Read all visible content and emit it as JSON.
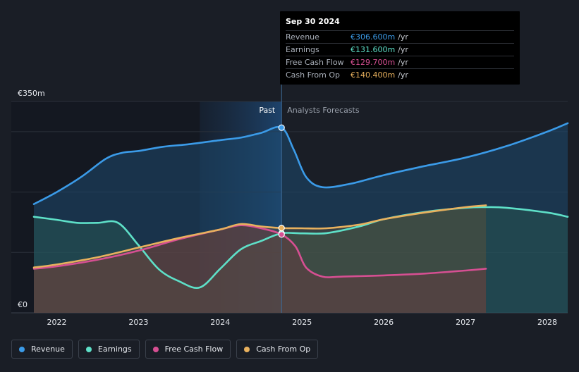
{
  "chart_data": {
    "type": "area",
    "title": "",
    "x_axis": {
      "min": 2021.72,
      "max": 2028.25,
      "ticks": [
        2022,
        2023,
        2024,
        2025,
        2026,
        2027,
        2028
      ],
      "tick_labels": [
        "2022",
        "2023",
        "2024",
        "2025",
        "2026",
        "2027",
        "2028"
      ]
    },
    "y_axis": {
      "min": 0,
      "max": 350,
      "top_label": "€350m",
      "bottom_label": "€0",
      "gridlines": [
        0,
        100,
        200,
        300,
        350
      ]
    },
    "divider_x": 2024.75,
    "highlight_range": [
      2023.75,
      2024.75
    ],
    "regions": {
      "past_label": "Past",
      "forecast_label": "Analysts Forecasts"
    },
    "series": [
      {
        "name": "Revenue",
        "color": "#3b9be8",
        "fill": "#1e4a70",
        "forecast_until": 2028.25,
        "points": [
          [
            2021.72,
            180
          ],
          [
            2022.0,
            200
          ],
          [
            2022.3,
            225
          ],
          [
            2022.6,
            255
          ],
          [
            2022.8,
            265
          ],
          [
            2023.0,
            268
          ],
          [
            2023.3,
            275
          ],
          [
            2023.6,
            279
          ],
          [
            2024.0,
            286
          ],
          [
            2024.25,
            290
          ],
          [
            2024.5,
            298
          ],
          [
            2024.75,
            306.6
          ],
          [
            2024.9,
            270
          ],
          [
            2025.05,
            225
          ],
          [
            2025.25,
            208
          ],
          [
            2025.6,
            214
          ],
          [
            2026.0,
            228
          ],
          [
            2026.5,
            243
          ],
          [
            2027.0,
            257
          ],
          [
            2027.5,
            276
          ],
          [
            2028.0,
            300
          ],
          [
            2028.25,
            314
          ]
        ]
      },
      {
        "name": "Earnings",
        "color": "#5ee0c8",
        "fill": "#2a5a52",
        "forecast_until": 2028.25,
        "points": [
          [
            2021.72,
            159
          ],
          [
            2022.0,
            154
          ],
          [
            2022.25,
            149
          ],
          [
            2022.5,
            149
          ],
          [
            2022.75,
            149
          ],
          [
            2023.0,
            112
          ],
          [
            2023.25,
            72
          ],
          [
            2023.5,
            52
          ],
          [
            2023.75,
            42
          ],
          [
            2024.0,
            73
          ],
          [
            2024.25,
            105
          ],
          [
            2024.5,
            119
          ],
          [
            2024.75,
            131.6
          ],
          [
            2025.0,
            131.6
          ],
          [
            2025.3,
            132
          ],
          [
            2025.7,
            143
          ],
          [
            2026.0,
            155
          ],
          [
            2026.5,
            167
          ],
          [
            2027.0,
            174
          ],
          [
            2027.25,
            175
          ],
          [
            2027.5,
            174
          ],
          [
            2028.0,
            166
          ],
          [
            2028.25,
            159
          ]
        ]
      },
      {
        "name": "Free Cash Flow",
        "color": "#d64f92",
        "fill": "#6a2a48",
        "forecast_until": 2027.25,
        "points": [
          [
            2021.72,
            73
          ],
          [
            2022.0,
            77
          ],
          [
            2022.5,
            88
          ],
          [
            2023.0,
            103
          ],
          [
            2023.5,
            122
          ],
          [
            2024.0,
            138
          ],
          [
            2024.25,
            145
          ],
          [
            2024.5,
            140
          ],
          [
            2024.75,
            129.7
          ],
          [
            2024.92,
            110
          ],
          [
            2025.05,
            75
          ],
          [
            2025.25,
            60
          ],
          [
            2025.5,
            60
          ],
          [
            2026.0,
            62
          ],
          [
            2026.5,
            65
          ],
          [
            2027.0,
            70
          ],
          [
            2027.25,
            73
          ]
        ]
      },
      {
        "name": "Cash From Op",
        "color": "#e8b15e",
        "fill": "#6a5335",
        "forecast_until": 2027.25,
        "points": [
          [
            2021.72,
            75
          ],
          [
            2022.0,
            80
          ],
          [
            2022.5,
            92
          ],
          [
            2023.0,
            108
          ],
          [
            2023.5,
            124
          ],
          [
            2024.0,
            138
          ],
          [
            2024.25,
            147
          ],
          [
            2024.5,
            143
          ],
          [
            2024.75,
            140.4
          ],
          [
            2025.0,
            140
          ],
          [
            2025.3,
            140
          ],
          [
            2025.7,
            146
          ],
          [
            2026.0,
            155
          ],
          [
            2026.5,
            166
          ],
          [
            2027.0,
            175
          ],
          [
            2027.25,
            178
          ]
        ]
      }
    ],
    "tooltip": {
      "date": "Sep 30 2024",
      "unit": "/yr",
      "rows": [
        {
          "label": "Revenue",
          "value": "€306.600m",
          "color": "#3b9be8"
        },
        {
          "label": "Earnings",
          "value": "€131.600m",
          "color": "#5ee0c8"
        },
        {
          "label": "Free Cash Flow",
          "value": "€129.700m",
          "color": "#d64f92"
        },
        {
          "label": "Cash From Op",
          "value": "€140.400m",
          "color": "#e8b15e"
        }
      ]
    },
    "legend": [
      {
        "label": "Revenue",
        "color": "#3b9be8"
      },
      {
        "label": "Earnings",
        "color": "#5ee0c8"
      },
      {
        "label": "Free Cash Flow",
        "color": "#d64f92"
      },
      {
        "label": "Cash From Op",
        "color": "#e8b15e"
      }
    ]
  }
}
